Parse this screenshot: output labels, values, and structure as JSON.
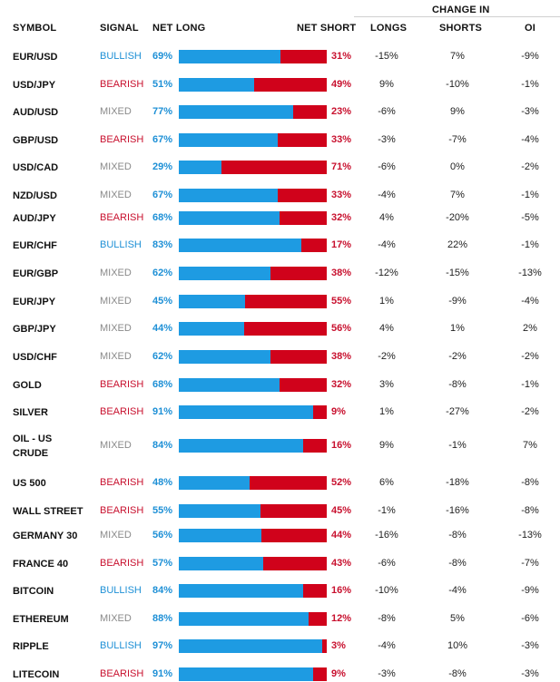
{
  "header": {
    "symbol": "SYMBOL",
    "signal": "SIGNAL",
    "net_long": "NET LONG",
    "net_short": "NET SHORT",
    "change_in": "CHANGE IN",
    "longs": "LONGS",
    "shorts": "SHORTS",
    "oi": "OI"
  },
  "colors": {
    "bullish": "#1e90d6",
    "bearish": "#c8102e",
    "mixed": "#8a8a8a",
    "long_bar": "#1e9be2",
    "short_bar": "#d0021b"
  },
  "rows": [
    {
      "symbol": "EUR/USD",
      "signal": "BULLISH",
      "net_long": "69%",
      "net_short": "31%",
      "longs": "-15%",
      "shorts": "7%",
      "oi": "-9%"
    },
    {
      "symbol": "USD/JPY",
      "signal": "BEARISH",
      "net_long": "51%",
      "net_short": "49%",
      "longs": "9%",
      "shorts": "-10%",
      "oi": "-1%"
    },
    {
      "symbol": "AUD/USD",
      "signal": "MIXED",
      "net_long": "77%",
      "net_short": "23%",
      "longs": "-6%",
      "shorts": "9%",
      "oi": "-3%"
    },
    {
      "symbol": "GBP/USD",
      "signal": "BEARISH",
      "net_long": "67%",
      "net_short": "33%",
      "longs": "-3%",
      "shorts": "-7%",
      "oi": "-4%"
    },
    {
      "symbol": "USD/CAD",
      "signal": "MIXED",
      "net_long": "29%",
      "net_short": "71%",
      "longs": "-6%",
      "shorts": "0%",
      "oi": "-2%"
    },
    {
      "symbol": "NZD/USD",
      "signal": "MIXED",
      "net_long": "67%",
      "net_short": "33%",
      "longs": "-4%",
      "shorts": "7%",
      "oi": "-1%"
    },
    {
      "symbol": "AUD/JPY",
      "signal": "BEARISH",
      "net_long": "68%",
      "net_short": "32%",
      "longs": "4%",
      "shorts": "-20%",
      "oi": "-5%"
    },
    {
      "symbol": "EUR/CHF",
      "signal": "BULLISH",
      "net_long": "83%",
      "net_short": "17%",
      "longs": "-4%",
      "shorts": "22%",
      "oi": "-1%"
    },
    {
      "symbol": "EUR/GBP",
      "signal": "MIXED",
      "net_long": "62%",
      "net_short": "38%",
      "longs": "-12%",
      "shorts": "-15%",
      "oi": "-13%"
    },
    {
      "symbol": "EUR/JPY",
      "signal": "MIXED",
      "net_long": "45%",
      "net_short": "55%",
      "longs": "1%",
      "shorts": "-9%",
      "oi": "-4%"
    },
    {
      "symbol": "GBP/JPY",
      "signal": "MIXED",
      "net_long": "44%",
      "net_short": "56%",
      "longs": "4%",
      "shorts": "1%",
      "oi": "2%"
    },
    {
      "symbol": "USD/CHF",
      "signal": "MIXED",
      "net_long": "62%",
      "net_short": "38%",
      "longs": "-2%",
      "shorts": "-2%",
      "oi": "-2%"
    },
    {
      "symbol": "GOLD",
      "signal": "BEARISH",
      "net_long": "68%",
      "net_short": "32%",
      "longs": "3%",
      "shorts": "-8%",
      "oi": "-1%"
    },
    {
      "symbol": "SILVER",
      "signal": "BEARISH",
      "net_long": "91%",
      "net_short": "9%",
      "longs": "1%",
      "shorts": "-27%",
      "oi": "-2%"
    },
    {
      "symbol": "OIL - US CRUDE",
      "signal": "MIXED",
      "net_long": "84%",
      "net_short": "16%",
      "longs": "9%",
      "shorts": "-1%",
      "oi": "7%"
    },
    {
      "symbol": "US 500",
      "signal": "BEARISH",
      "net_long": "48%",
      "net_short": "52%",
      "longs": "6%",
      "shorts": "-18%",
      "oi": "-8%"
    },
    {
      "symbol": "WALL STREET",
      "signal": "BEARISH",
      "net_long": "55%",
      "net_short": "45%",
      "longs": "-1%",
      "shorts": "-16%",
      "oi": "-8%"
    },
    {
      "symbol": "GERMANY 30",
      "signal": "MIXED",
      "net_long": "56%",
      "net_short": "44%",
      "longs": "-16%",
      "shorts": "-8%",
      "oi": "-13%"
    },
    {
      "symbol": "FRANCE 40",
      "signal": "BEARISH",
      "net_long": "57%",
      "net_short": "43%",
      "longs": "-6%",
      "shorts": "-8%",
      "oi": "-7%"
    },
    {
      "symbol": "BITCOIN",
      "signal": "BULLISH",
      "net_long": "84%",
      "net_short": "16%",
      "longs": "-10%",
      "shorts": "-4%",
      "oi": "-9%"
    },
    {
      "symbol": "ETHEREUM",
      "signal": "MIXED",
      "net_long": "88%",
      "net_short": "12%",
      "longs": "-8%",
      "shorts": "5%",
      "oi": "-6%"
    },
    {
      "symbol": "RIPPLE",
      "signal": "BULLISH",
      "net_long": "97%",
      "net_short": "3%",
      "longs": "-4%",
      "shorts": "10%",
      "oi": "-3%"
    },
    {
      "symbol": "LITECOIN",
      "signal": "BEARISH",
      "net_long": "91%",
      "net_short": "9%",
      "longs": "-3%",
      "shorts": "-8%",
      "oi": "-3%"
    }
  ]
}
